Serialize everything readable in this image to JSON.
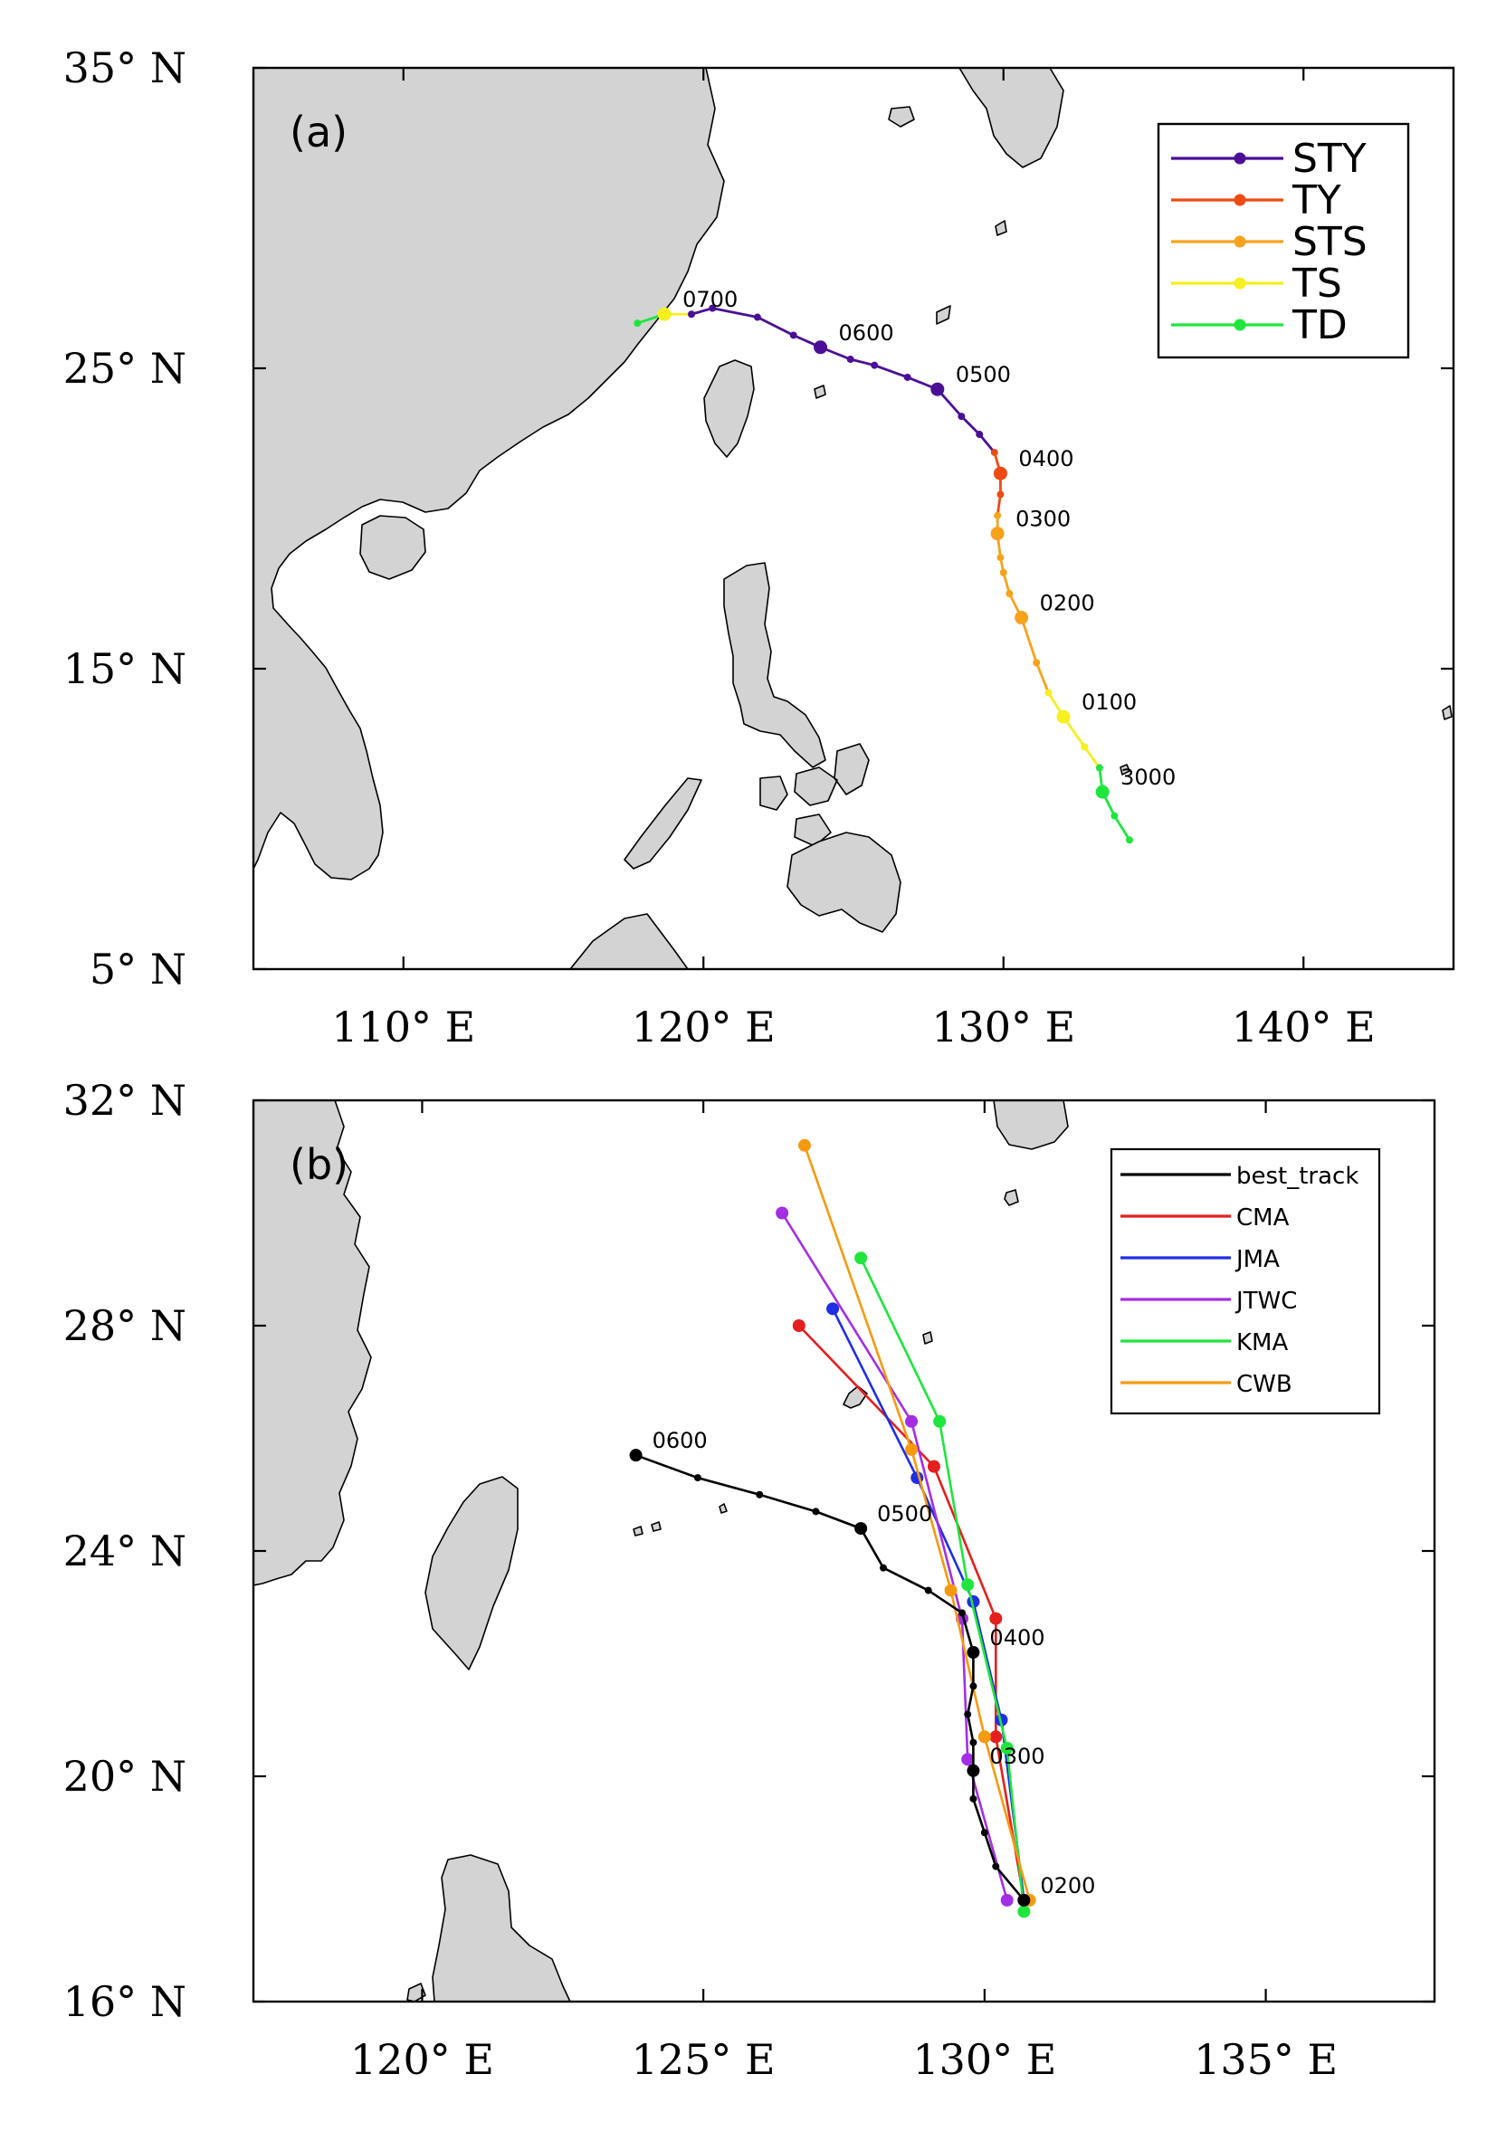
{
  "chart_data": [
    {
      "type": "map-track",
      "panel_label": "(a)",
      "lon_range": [
        105,
        145
      ],
      "lat_range": [
        5,
        35
      ],
      "x_ticks": [
        "110° E",
        "120° E",
        "130° E",
        "140° E"
      ],
      "x_tick_values": [
        110,
        120,
        130,
        140
      ],
      "y_ticks": [
        "35° N",
        "25° N",
        "15° N",
        "5° N"
      ],
      "y_tick_values": [
        35,
        25,
        15,
        5
      ],
      "legend_position": "top-right",
      "legend": [
        {
          "label": "STY",
          "color": "#4b0f96"
        },
        {
          "label": "TY",
          "color": "#ee4a14"
        },
        {
          "label": "STS",
          "color": "#f7a21c"
        },
        {
          "label": "TS",
          "color": "#f5f01e"
        },
        {
          "label": "TD",
          "color": "#1ee63c"
        }
      ],
      "track": [
        {
          "lon": 134.2,
          "lat": 9.3,
          "cat": "TD"
        },
        {
          "lon": 133.7,
          "lat": 10.1,
          "cat": "TD"
        },
        {
          "lon": 133.3,
          "lat": 10.9,
          "cat": "TD",
          "major": true
        },
        {
          "lon": 133.2,
          "lat": 11.7,
          "cat": "TD"
        },
        {
          "lon": 132.7,
          "lat": 12.4,
          "cat": "TS"
        },
        {
          "lon": 132.0,
          "lat": 13.4,
          "cat": "TS",
          "major": true
        },
        {
          "lon": 131.5,
          "lat": 14.2,
          "cat": "TS"
        },
        {
          "lon": 131.1,
          "lat": 15.2,
          "cat": "STS"
        },
        {
          "lon": 130.6,
          "lat": 16.7,
          "cat": "STS",
          "major": true
        },
        {
          "lon": 130.2,
          "lat": 17.5,
          "cat": "STS"
        },
        {
          "lon": 130.0,
          "lat": 18.2,
          "cat": "STS"
        },
        {
          "lon": 129.9,
          "lat": 18.7,
          "cat": "STS"
        },
        {
          "lon": 129.8,
          "lat": 19.5,
          "cat": "STS",
          "major": true
        },
        {
          "lon": 129.8,
          "lat": 20.1,
          "cat": "STS"
        },
        {
          "lon": 129.9,
          "lat": 20.8,
          "cat": "TY"
        },
        {
          "lon": 129.9,
          "lat": 21.5,
          "cat": "TY",
          "major": true
        },
        {
          "lon": 129.7,
          "lat": 22.2,
          "cat": "TY"
        },
        {
          "lon": 129.2,
          "lat": 22.8,
          "cat": "STY"
        },
        {
          "lon": 128.6,
          "lat": 23.4,
          "cat": "STY"
        },
        {
          "lon": 127.8,
          "lat": 24.3,
          "cat": "STY",
          "major": true
        },
        {
          "lon": 126.8,
          "lat": 24.7,
          "cat": "STY"
        },
        {
          "lon": 125.7,
          "lat": 25.1,
          "cat": "STY"
        },
        {
          "lon": 124.9,
          "lat": 25.3,
          "cat": "STY"
        },
        {
          "lon": 123.9,
          "lat": 25.7,
          "cat": "STY",
          "major": true
        },
        {
          "lon": 123.0,
          "lat": 26.1,
          "cat": "STY"
        },
        {
          "lon": 121.8,
          "lat": 26.7,
          "cat": "STY"
        },
        {
          "lon": 120.3,
          "lat": 27.0,
          "cat": "STY"
        },
        {
          "lon": 119.6,
          "lat": 26.8,
          "cat": "STY"
        },
        {
          "lon": 118.7,
          "lat": 26.8,
          "cat": "TS",
          "major": true
        },
        {
          "lon": 117.8,
          "lat": 26.5,
          "cat": "TD"
        }
      ],
      "time_labels": [
        {
          "text": "0700",
          "lon": 118.7,
          "lat": 26.8
        },
        {
          "text": "0600",
          "lon": 123.9,
          "lat": 25.7
        },
        {
          "text": "0500",
          "lon": 127.8,
          "lat": 24.3
        },
        {
          "text": "0400",
          "lon": 129.9,
          "lat": 21.5
        },
        {
          "text": "0300",
          "lon": 129.8,
          "lat": 19.5
        },
        {
          "text": "0200",
          "lon": 130.6,
          "lat": 16.7
        },
        {
          "text": "0100",
          "lon": 132.0,
          "lat": 13.4
        },
        {
          "text": "3000",
          "lon": 133.3,
          "lat": 10.9
        }
      ]
    },
    {
      "type": "map-track",
      "panel_label": "(b)",
      "lon_range": [
        117,
        138
      ],
      "lat_range": [
        16,
        32
      ],
      "x_ticks": [
        "120° E",
        "125° E",
        "130° E",
        "135° E"
      ],
      "x_tick_values": [
        120,
        125,
        130,
        135
      ],
      "y_ticks": [
        "32° N",
        "28° N",
        "24° N",
        "20° N",
        "16° N"
      ],
      "y_tick_values": [
        32,
        28,
        24,
        20,
        16
      ],
      "legend_position": "top-right",
      "series": [
        {
          "name": "best_track",
          "color": "#000000",
          "points": [
            {
              "lon": 130.7,
              "lat": 17.8,
              "major": true
            },
            {
              "lon": 130.2,
              "lat": 18.4
            },
            {
              "lon": 130.0,
              "lat": 19.0
            },
            {
              "lon": 129.8,
              "lat": 19.6
            },
            {
              "lon": 129.8,
              "lat": 20.1,
              "major": true
            },
            {
              "lon": 129.8,
              "lat": 20.6
            },
            {
              "lon": 129.7,
              "lat": 21.1
            },
            {
              "lon": 129.8,
              "lat": 21.6
            },
            {
              "lon": 129.8,
              "lat": 22.2,
              "major": true
            },
            {
              "lon": 129.6,
              "lat": 22.9
            },
            {
              "lon": 129.0,
              "lat": 23.3
            },
            {
              "lon": 128.2,
              "lat": 23.7
            },
            {
              "lon": 127.8,
              "lat": 24.4,
              "major": true
            },
            {
              "lon": 127.0,
              "lat": 24.7
            },
            {
              "lon": 126.0,
              "lat": 25.0
            },
            {
              "lon": 124.9,
              "lat": 25.3
            },
            {
              "lon": 123.8,
              "lat": 25.7,
              "major": true
            }
          ]
        },
        {
          "name": "CMA",
          "color": "#e51e1e",
          "points": [
            {
              "lon": 130.7,
              "lat": 17.8
            },
            {
              "lon": 130.2,
              "lat": 20.7
            },
            {
              "lon": 130.2,
              "lat": 22.8
            },
            {
              "lon": 129.1,
              "lat": 25.5
            },
            {
              "lon": 126.7,
              "lat": 28.0
            }
          ]
        },
        {
          "name": "JMA",
          "color": "#1e2ee5",
          "points": [
            {
              "lon": 130.7,
              "lat": 17.8
            },
            {
              "lon": 130.3,
              "lat": 21.0
            },
            {
              "lon": 129.8,
              "lat": 23.1
            },
            {
              "lon": 128.8,
              "lat": 25.3
            },
            {
              "lon": 127.3,
              "lat": 28.3
            }
          ]
        },
        {
          "name": "JTWC",
          "color": "#a32ee5",
          "points": [
            {
              "lon": 130.4,
              "lat": 17.8
            },
            {
              "lon": 129.7,
              "lat": 20.3
            },
            {
              "lon": 129.6,
              "lat": 22.8
            },
            {
              "lon": 128.7,
              "lat": 26.3
            },
            {
              "lon": 126.4,
              "lat": 30.0
            }
          ]
        },
        {
          "name": "KMA",
          "color": "#1ee63c",
          "points": [
            {
              "lon": 130.7,
              "lat": 17.6
            },
            {
              "lon": 130.4,
              "lat": 20.5
            },
            {
              "lon": 129.7,
              "lat": 23.4
            },
            {
              "lon": 129.2,
              "lat": 26.3
            },
            {
              "lon": 127.8,
              "lat": 29.2
            }
          ]
        },
        {
          "name": "CWB",
          "color": "#f59a0f",
          "points": [
            {
              "lon": 130.8,
              "lat": 17.8
            },
            {
              "lon": 130.0,
              "lat": 20.7
            },
            {
              "lon": 129.4,
              "lat": 23.3
            },
            {
              "lon": 128.7,
              "lat": 25.8
            },
            {
              "lon": 126.8,
              "lat": 31.2
            }
          ]
        }
      ],
      "time_labels": [
        {
          "text": "0600",
          "lon": 123.8,
          "lat": 25.7
        },
        {
          "text": "0500",
          "lon": 127.8,
          "lat": 24.4
        },
        {
          "text": "0400",
          "lon": 129.8,
          "lat": 22.2
        },
        {
          "text": "0300",
          "lon": 129.8,
          "lat": 20.1
        },
        {
          "text": "0200",
          "lon": 130.7,
          "lat": 17.8
        }
      ]
    }
  ]
}
